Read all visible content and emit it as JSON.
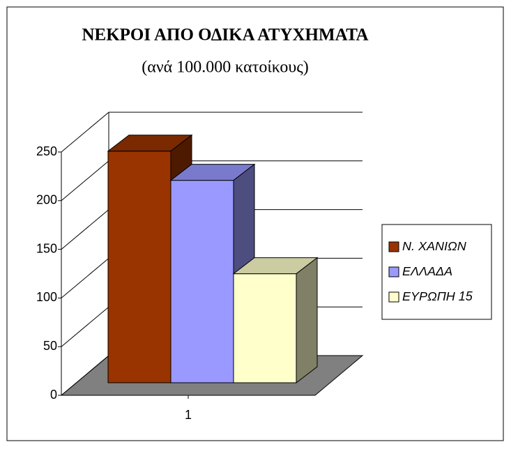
{
  "chart_data": {
    "type": "bar3d",
    "title": "ΝΕΚΡΟΙ ΑΠΟ ΟΔΙΚΑ ΑΤΥΧΗΜΑΤΑ",
    "subtitle": "(ανά 100.000 κατοίκους)",
    "categories": [
      "1"
    ],
    "series": [
      {
        "name": "Ν. ΧΑΝΙΩΝ",
        "color": "#993300",
        "values": [
          238
        ]
      },
      {
        "name": "ΕΛΛΑΔΑ",
        "color": "#9999ff",
        "values": [
          208
        ]
      },
      {
        "name": "ΕΥΡΩΠΗ 15",
        "color": "#ffffcc",
        "values": [
          112
        ]
      }
    ],
    "ylim": [
      0,
      250
    ],
    "yticks": [
      0,
      50,
      100,
      150,
      200,
      250
    ],
    "grid": true,
    "legend": "right"
  }
}
